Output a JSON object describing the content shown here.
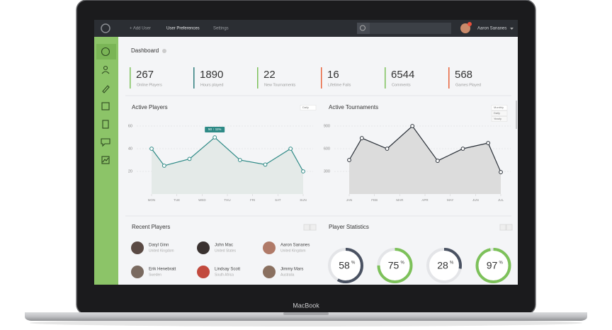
{
  "nav": {
    "links": [
      "+ Add User",
      "User Preferences",
      "Settings"
    ],
    "user": "Aaron Sananes"
  },
  "dashboard": {
    "title": "Dashboard"
  },
  "stats": [
    {
      "value": "267",
      "label": "Online Players",
      "color": "#7dc15a"
    },
    {
      "value": "1890",
      "label": "Hours played",
      "color": "#2e7d7d"
    },
    {
      "value": "22",
      "label": "New Tournaments",
      "color": "#7dc15a"
    },
    {
      "value": "16",
      "label": "Lifetime Fails",
      "color": "#e8643c"
    },
    {
      "value": "6544",
      "label": "Comments",
      "color": "#7dc15a"
    },
    {
      "value": "568",
      "label": "Games Played",
      "color": "#e8643c"
    }
  ],
  "chart_data": [
    {
      "type": "line",
      "title": "Active Players",
      "dropdown": [
        "Daily"
      ],
      "x": [
        0,
        0.5,
        1.5,
        2.5,
        3.5,
        4.5,
        5.5,
        6
      ],
      "values": [
        40,
        25,
        31,
        50,
        30,
        26,
        40,
        20
      ],
      "xlim": [
        0,
        6
      ],
      "xticks": [
        {
          "value": 0,
          "label": "MON"
        },
        {
          "value": 1,
          "label": "TUE"
        },
        {
          "value": 2,
          "label": "WED"
        },
        {
          "value": 3,
          "label": "THU"
        },
        {
          "value": 4,
          "label": "FRI"
        },
        {
          "value": 5,
          "label": "SAT"
        },
        {
          "value": 6,
          "label": "SUN"
        }
      ],
      "ylim": [
        0,
        60
      ],
      "yticks": [
        20,
        40,
        60
      ],
      "grid": true,
      "color": "#2e8a86",
      "area_color": "#e4eae8",
      "annotation": {
        "text": "50 ↑ 11%",
        "index": 3
      }
    },
    {
      "type": "line",
      "title": "Active Tournaments",
      "dropdown": [
        "Monthly",
        "Daily",
        "Yearly"
      ],
      "x": [
        0,
        0.5,
        1.5,
        2.5,
        3.5,
        4.5,
        5.5,
        6
      ],
      "values": [
        450,
        740,
        600,
        900,
        440,
        600,
        675,
        290
      ],
      "xlim": [
        0,
        6
      ],
      "xticks": [
        {
          "value": 0,
          "label": "JAN"
        },
        {
          "value": 1,
          "label": "FEB"
        },
        {
          "value": 2,
          "label": "MAR"
        },
        {
          "value": 3,
          "label": "APR"
        },
        {
          "value": 4,
          "label": "MAY"
        },
        {
          "value": 5,
          "label": "JUN"
        },
        {
          "value": 6,
          "label": "JUL"
        }
      ],
      "ylim": [
        0,
        900
      ],
      "yticks": [
        300,
        600,
        900
      ],
      "grid": true,
      "color": "#2a3038",
      "area_color": "#dcdcdc"
    }
  ],
  "recent_players": {
    "title": "Recent Players",
    "players": [
      {
        "name": "Daryl Ginn",
        "country": "United Kingdom"
      },
      {
        "name": "John Mac",
        "country": "United States"
      },
      {
        "name": "Aaron Sananes",
        "country": "United Kingdom"
      },
      {
        "name": "Erik Henebratt",
        "country": "Sweden"
      },
      {
        "name": "Lindsay Scott",
        "country": "South Africa"
      },
      {
        "name": "Jimmy Mars",
        "country": "Australia"
      }
    ]
  },
  "player_statistics": {
    "title": "Player Statistics",
    "unit": "%",
    "items": [
      {
        "value": 58,
        "color": "#4a5262"
      },
      {
        "value": 75,
        "color": "#7dc15a"
      },
      {
        "value": 28,
        "color": "#4a5262"
      },
      {
        "value": 97,
        "color": "#7dc15a"
      }
    ]
  },
  "laptop_label": "MacBook"
}
